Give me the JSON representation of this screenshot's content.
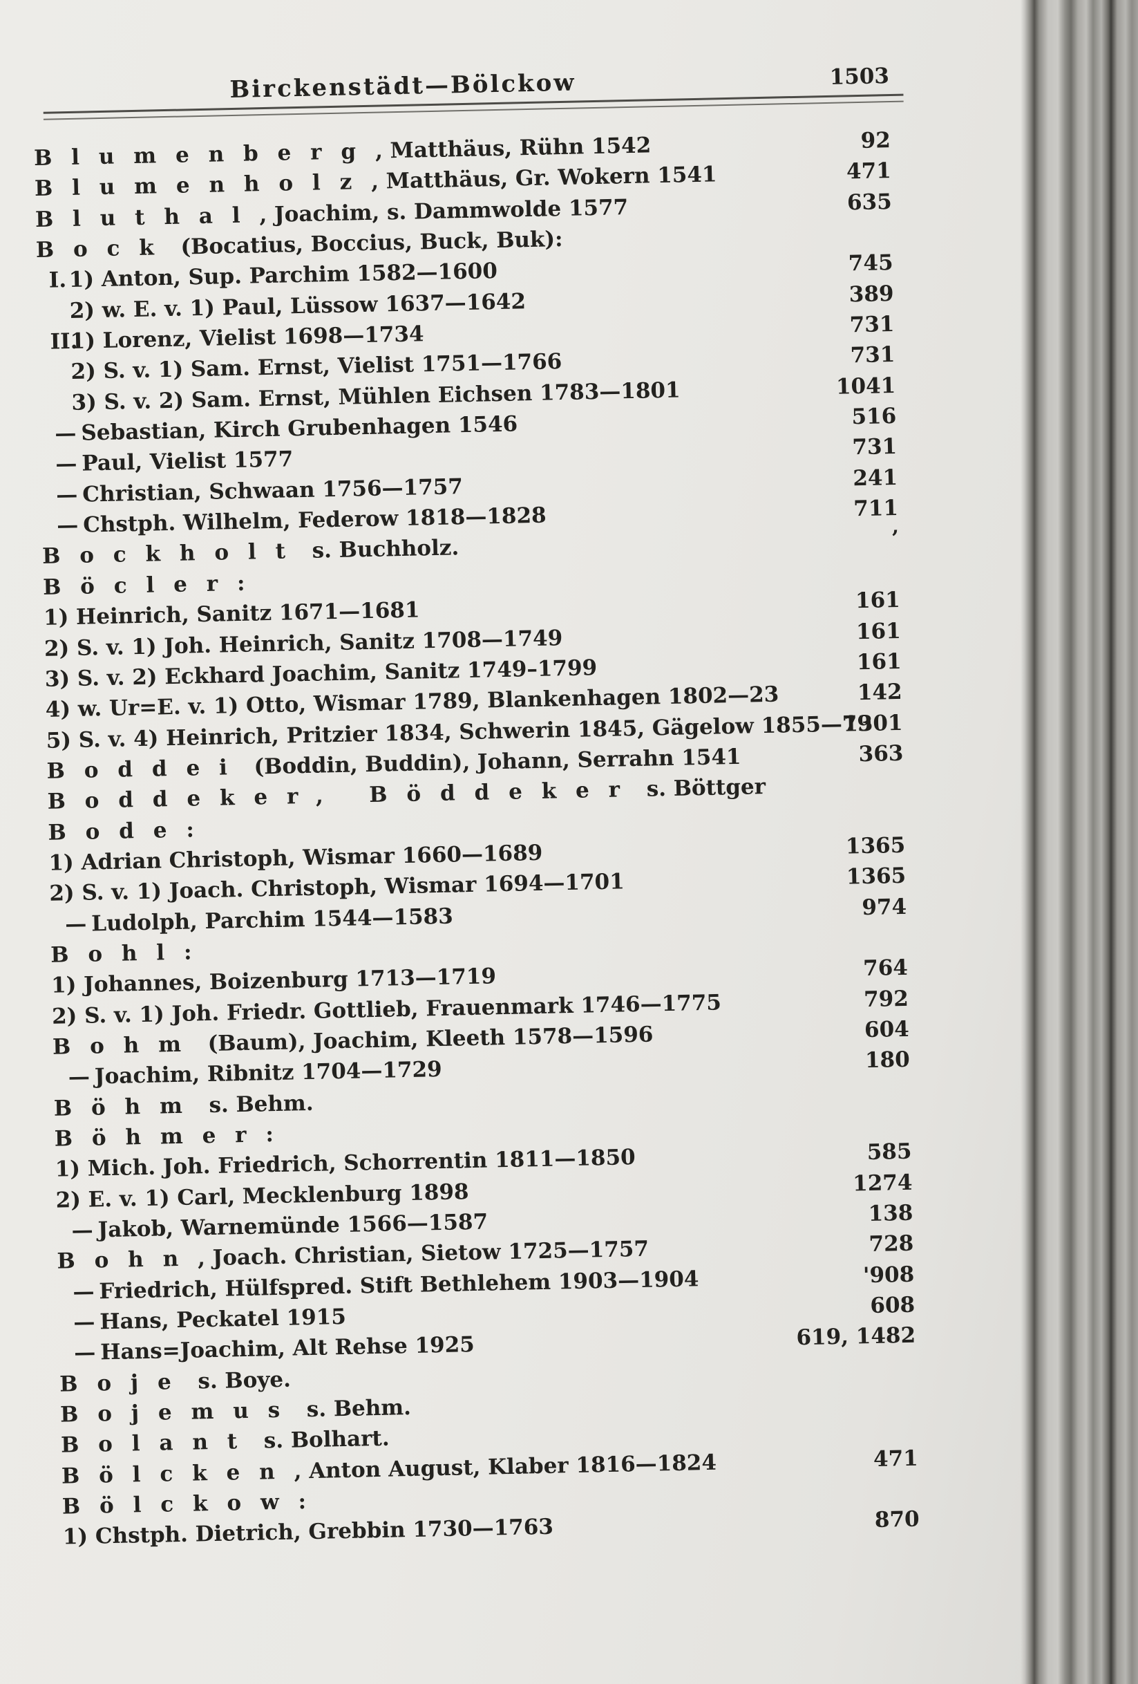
{
  "header": {
    "title": "Birckenstädt—Bölckow",
    "page_number": "1503"
  },
  "colors": {
    "paper": "#e9e8e4",
    "ink": "#23221f",
    "rule": "#4c4b47",
    "gutter_dark": "#55544f"
  },
  "entries": [
    {
      "spaced": "Blumenberg",
      "text": ", Matthäus, Rühn 1542",
      "page": "92",
      "indent": 0,
      "prefix": ""
    },
    {
      "spaced": "Blumenholz",
      "text": ", Matthäus, Gr. Wokern 1541",
      "page": "471",
      "indent": 0,
      "prefix": ""
    },
    {
      "spaced": "Bluthal",
      "text": ", Joachim, s. Dammwolde 1577",
      "page": "635",
      "indent": 0,
      "prefix": ""
    },
    {
      "spaced": "Bock",
      "text": " (Bocatius, Boccius, Buck, Buk):",
      "page": "",
      "indent": 0,
      "prefix": ""
    },
    {
      "spaced": "",
      "text": "1) Anton, Sup. Parchim 1582—1600",
      "page": "745",
      "indent": 0,
      "prefix": "I."
    },
    {
      "spaced": "",
      "text": "2) w. E. v. 1) Paul, Lüssow 1637—1642",
      "page": "389",
      "indent": 1,
      "prefix": ""
    },
    {
      "spaced": "",
      "text": "1) Lorenz, Vielist 1698—1734",
      "page": "731",
      "indent": 0,
      "prefix": "II."
    },
    {
      "spaced": "",
      "text": "2) S. v. 1) Sam. Ernst, Vielist 1751—1766",
      "page": "731",
      "indent": 1,
      "prefix": ""
    },
    {
      "spaced": "",
      "text": "3) S. v. 2) Sam. Ernst, Mühlen Eichsen 1783—1801",
      "page": "1041",
      "indent": 1,
      "prefix": ""
    },
    {
      "spaced": "",
      "text": "Sebastian, Kirch Grubenhagen 1546",
      "page": "516",
      "indent": 0,
      "prefix": "—"
    },
    {
      "spaced": "",
      "text": "Paul, Vielist 1577",
      "page": "731",
      "indent": 0,
      "prefix": "—"
    },
    {
      "spaced": "",
      "text": "Christian, Schwaan 1756—1757",
      "page": "241",
      "indent": 0,
      "prefix": "—"
    },
    {
      "spaced": "",
      "text": "Chstph. Wilhelm, Federow 1818—1828",
      "page": "711",
      "indent": 0,
      "prefix": "—"
    },
    {
      "spaced": "Bockholt",
      "text": " s. Buchholz.",
      "page": "’",
      "indent": 0,
      "prefix": ""
    },
    {
      "spaced": "Böcler:",
      "text": "",
      "page": "",
      "indent": 0,
      "prefix": ""
    },
    {
      "spaced": "",
      "text": "1) Heinrich, Sanitz 1671—1681",
      "page": "161",
      "indent": 0,
      "prefix": ""
    },
    {
      "spaced": "",
      "text": "2) S. v. 1) Joh. Heinrich, Sanitz 1708—1749",
      "page": "161",
      "indent": 0,
      "prefix": ""
    },
    {
      "spaced": "",
      "text": "3) S. v. 2) Eckhard Joachim, Sanitz 1749–1799",
      "page": "161",
      "indent": 0,
      "prefix": ""
    },
    {
      "spaced": "",
      "text": "4) w. Ur=E. v. 1) Otto, Wismar 1789, Blankenhagen 1802—23",
      "page": "142",
      "indent": 0,
      "prefix": ""
    },
    {
      "spaced": "",
      "text": "5) S. v. 4) Heinrich, Pritzier 1834, Schwerin 1845, Gägelow 1855—79",
      "page": "1301",
      "indent": 0,
      "prefix": ""
    },
    {
      "spaced": "Boddei",
      "text": " (Boddin, Buddin), Johann, Serrahn 1541",
      "page": "363",
      "indent": 0,
      "prefix": ""
    },
    {
      "spaced": "Boddeker, Böddeker",
      "text": " s. Böttger",
      "page": "",
      "indent": 0,
      "prefix": ""
    },
    {
      "spaced": "Bode:",
      "text": "",
      "page": "",
      "indent": 0,
      "prefix": ""
    },
    {
      "spaced": "",
      "text": "1) Adrian Christoph, Wismar 1660—1689",
      "page": "1365",
      "indent": 0,
      "prefix": ""
    },
    {
      "spaced": "",
      "text": "2) S. v. 1) Joach. Christoph, Wismar 1694—1701",
      "page": "1365",
      "indent": 0,
      "prefix": ""
    },
    {
      "spaced": "",
      "text": "Ludolph, Parchim 1544—1583",
      "page": "974",
      "indent": 0,
      "prefix": "—"
    },
    {
      "spaced": "Bohl:",
      "text": "",
      "page": "",
      "indent": 0,
      "prefix": ""
    },
    {
      "spaced": "",
      "text": "1) Johannes, Boizenburg 1713—1719",
      "page": "764",
      "indent": 0,
      "prefix": ""
    },
    {
      "spaced": "",
      "text": "2) S. v. 1) Joh. Friedr. Gottlieb, Frauenmark 1746—1775",
      "page": "792",
      "indent": 0,
      "prefix": ""
    },
    {
      "spaced": "Bohm",
      "text": " (Baum), Joachim, Kleeth 1578—1596",
      "page": "604",
      "indent": 0,
      "prefix": ""
    },
    {
      "spaced": "",
      "text": "Joachim, Ribnitz 1704—1729",
      "page": "180",
      "indent": 0,
      "prefix": "—"
    },
    {
      "spaced": "Böhm",
      "text": " s. Behm.",
      "page": "",
      "indent": 0,
      "prefix": ""
    },
    {
      "spaced": "Böhmer:",
      "text": "",
      "page": "",
      "indent": 0,
      "prefix": ""
    },
    {
      "spaced": "",
      "text": "1) Mich. Joh. Friedrich, Schorrentin 1811—1850",
      "page": "585",
      "indent": 0,
      "prefix": ""
    },
    {
      "spaced": "",
      "text": "2) E. v. 1) Carl, Mecklenburg 1898",
      "page": "1274",
      "indent": 0,
      "prefix": ""
    },
    {
      "spaced": "",
      "text": "Jakob, Warnemünde 1566—1587",
      "page": "138",
      "indent": 0,
      "prefix": "—"
    },
    {
      "spaced": "Bohn",
      "text": ", Joach. Christian, Sietow 1725—1757",
      "page": "728",
      "indent": 0,
      "prefix": ""
    },
    {
      "spaced": "",
      "text": "Friedrich, Hülfspred. Stift Bethlehem 1903—1904",
      "page": "'908",
      "indent": 0,
      "prefix": "—"
    },
    {
      "spaced": "",
      "text": "Hans, Peckatel 1915",
      "page": "608",
      "indent": 0,
      "prefix": "—"
    },
    {
      "spaced": "",
      "text": "Hans=Joachim, Alt Rehse 1925",
      "page": "619, 1482",
      "indent": 0,
      "prefix": "—"
    },
    {
      "spaced": "Boje",
      "text": " s. Boye.",
      "page": "",
      "indent": 0,
      "prefix": ""
    },
    {
      "spaced": "Bojemus",
      "text": " s. Behm.",
      "page": "",
      "indent": 0,
      "prefix": ""
    },
    {
      "spaced": "Bolant",
      "text": " s. Bolhart.",
      "page": "",
      "indent": 0,
      "prefix": ""
    },
    {
      "spaced": "Bölcken",
      "text": ", Anton August, Klaber 1816—1824",
      "page": "471",
      "indent": 0,
      "prefix": ""
    },
    {
      "spaced": "Bölckow:",
      "text": "",
      "page": "",
      "indent": 0,
      "prefix": ""
    },
    {
      "spaced": "",
      "text": "1) Chstph. Dietrich, Grebbin 1730—1763",
      "page": "870",
      "indent": 0,
      "prefix": ""
    }
  ]
}
